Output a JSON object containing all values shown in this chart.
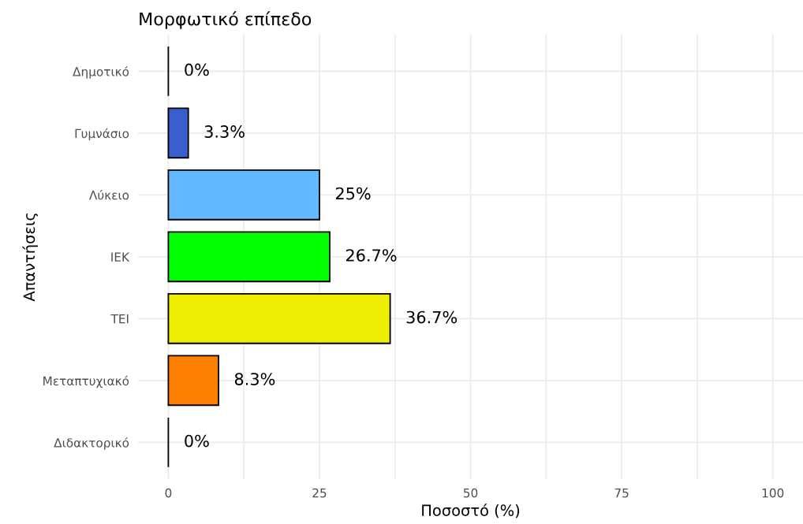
{
  "chart_data": {
    "type": "bar",
    "orientation": "horizontal",
    "title": "Μορφωτικό επίπεδο",
    "xlabel": "Ποσοστό (%)",
    "ylabel": "Απαντήσεις",
    "categories": [
      "Δημοτικό",
      "Γυμνάσιο",
      "Λύκειο",
      "ΙΕΚ",
      "ΤΕΙ",
      "Μεταπτυχιακό",
      "Διδακτορικό"
    ],
    "values": [
      0,
      3.3,
      25,
      26.7,
      36.7,
      8.3,
      0
    ],
    "value_labels": [
      "0%",
      "3.3%",
      "25%",
      "26.7%",
      "36.7%",
      "8.3%",
      "0%"
    ],
    "colors": [
      null,
      "#3a5fcd",
      "#63b8ff",
      "#00ff00",
      "#eeee00",
      "#ff7f00",
      null
    ],
    "xlim": [
      -5,
      105
    ],
    "xticks": [
      0,
      {
        "value": 12.5,
        "label": null
      },
      25,
      {
        "value": 37.5,
        "label": null
      },
      50,
      {
        "value": 62.5,
        "label": null
      },
      75,
      {
        "value": 87.5,
        "label": null
      },
      100
    ],
    "grid": true
  }
}
